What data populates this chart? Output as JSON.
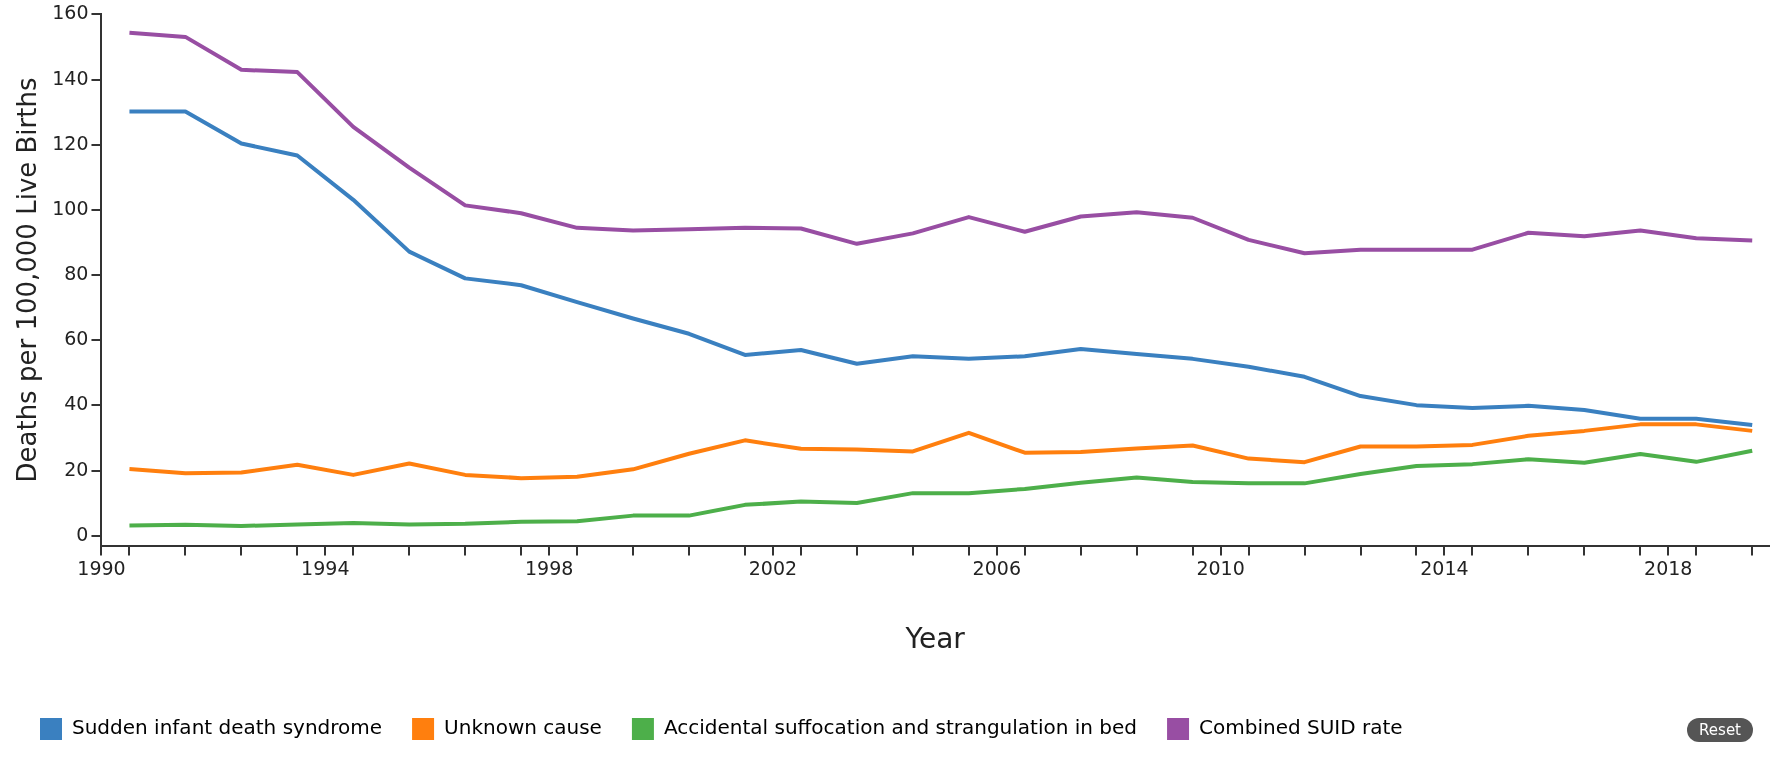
{
  "chart_data": {
    "type": "line",
    "xlabel": "Year",
    "ylabel": "Deaths per 100,000 Live Births",
    "x": [
      1990.5,
      1991.5,
      1992.5,
      1993.5,
      1994.5,
      1995.5,
      1996.5,
      1997.5,
      1998.5,
      1999.5,
      2000.5,
      2001.5,
      2002.5,
      2003.5,
      2004.5,
      2005.5,
      2006.5,
      2007.5,
      2008.5,
      2009.5,
      2010.5,
      2011.5,
      2012.5,
      2013.5,
      2014.5,
      2015.5,
      2016.5,
      2017.5,
      2018.5,
      2019.5
    ],
    "xlim": [
      1990,
      2019.8
    ],
    "xticks": [
      1990,
      {
        "value": 1990.5,
        "label": null
      },
      {
        "value": 1991.5,
        "label": null
      },
      {
        "value": 1992.5,
        "label": null
      },
      {
        "value": 1993.5,
        "label": null
      },
      1994,
      {
        "value": 1994.5,
        "label": null
      },
      {
        "value": 1995.5,
        "label": null
      },
      {
        "value": 1996.5,
        "label": null
      },
      {
        "value": 1997.5,
        "label": null
      },
      1998,
      {
        "value": 1998.5,
        "label": null
      },
      {
        "value": 1999.5,
        "label": null
      },
      {
        "value": 2000.5,
        "label": null
      },
      {
        "value": 2001.5,
        "label": null
      },
      2002,
      {
        "value": 2002.5,
        "label": null
      },
      {
        "value": 2003.5,
        "label": null
      },
      {
        "value": 2004.5,
        "label": null
      },
      {
        "value": 2005.5,
        "label": null
      },
      2006,
      {
        "value": 2006.5,
        "label": null
      },
      {
        "value": 2007.5,
        "label": null
      },
      {
        "value": 2008.5,
        "label": null
      },
      {
        "value": 2009.5,
        "label": null
      },
      2010,
      {
        "value": 2010.5,
        "label": null
      },
      {
        "value": 2011.5,
        "label": null
      },
      {
        "value": 2012.5,
        "label": null
      },
      {
        "value": 2013.5,
        "label": null
      },
      2014,
      {
        "value": 2014.5,
        "label": null
      },
      {
        "value": 2015.5,
        "label": null
      },
      {
        "value": 2016.5,
        "label": null
      },
      {
        "value": 2017.5,
        "label": null
      },
      2018,
      {
        "value": 2018.5,
        "label": null
      },
      {
        "value": 2019.5,
        "label": null
      }
    ],
    "ylim": [
      -3,
      160
    ],
    "yticks": [
      0,
      20,
      40,
      60,
      80,
      100,
      120,
      140,
      160
    ],
    "grid": false,
    "legend": "bottom",
    "marker": "none",
    "line_style": "solid",
    "annotations": [
      "Reset"
    ],
    "series": [
      {
        "name": "Sudden infant death syndrome",
        "color": "#3a80c0",
        "values": [
          130.2,
          130.2,
          120.4,
          116.7,
          103.1,
          87.2,
          79.0,
          76.9,
          71.7,
          66.7,
          62.0,
          55.5,
          57.0,
          52.8,
          55.1,
          54.3,
          55.1,
          57.3,
          55.8,
          54.3,
          51.9,
          48.8,
          42.9,
          40.1,
          39.2,
          39.9,
          38.6,
          35.9,
          35.9,
          34.0
        ]
      },
      {
        "name": "Unknown cause",
        "color": "#ff7f0e",
        "values": [
          20.5,
          19.2,
          19.4,
          21.8,
          18.7,
          22.2,
          18.7,
          17.7,
          18.1,
          20.4,
          25.2,
          29.3,
          26.7,
          26.5,
          25.9,
          31.6,
          25.5,
          25.7,
          26.8,
          27.7,
          23.7,
          22.6,
          27.4,
          27.4,
          27.9,
          30.7,
          32.2,
          34.2,
          34.2,
          32.2
        ]
      },
      {
        "name": "Accidental suffocation and strangulation in bed",
        "color": "#4daf4a",
        "values": [
          3.2,
          3.4,
          3.0,
          3.5,
          3.9,
          3.5,
          3.7,
          4.3,
          4.5,
          6.2,
          6.2,
          9.5,
          10.5,
          10.1,
          13.1,
          13.1,
          14.4,
          16.3,
          17.9,
          16.5,
          16.1,
          16.1,
          19.0,
          21.4,
          22.0,
          23.5,
          22.4,
          25.1,
          22.7,
          26.1
        ]
      },
      {
        "name": "Combined SUID rate",
        "color": "#984ea3",
        "values": [
          154.4,
          153.1,
          143.0,
          142.3,
          125.5,
          113.0,
          101.4,
          99.0,
          94.5,
          93.7,
          94.1,
          94.5,
          94.3,
          89.6,
          92.8,
          97.8,
          93.3,
          98.0,
          99.3,
          97.6,
          90.8,
          86.7,
          87.8,
          87.8,
          87.8,
          93.0,
          91.9,
          93.7,
          91.3,
          90.6
        ]
      }
    ]
  }
}
